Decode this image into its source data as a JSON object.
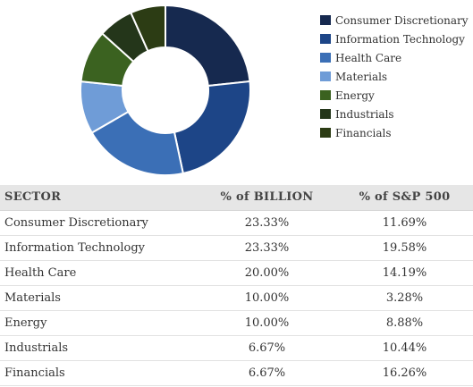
{
  "chart_data": {
    "type": "pie",
    "style": "donut",
    "categories": [
      "Consumer Discretionary",
      "Information Technology",
      "Health Care",
      "Materials",
      "Energy",
      "Industrials",
      "Financials"
    ],
    "values": [
      23.33,
      23.33,
      20.0,
      10.0,
      10.0,
      6.67,
      6.67
    ],
    "colors": [
      "#16294f",
      "#1d4587",
      "#3b6fb6",
      "#6f9cd7",
      "#3b6220",
      "#24361a",
      "#2c3c14"
    ],
    "legend_position": "right"
  },
  "legend": {
    "items": [
      {
        "label": "Consumer Discretionary",
        "color": "#16294f"
      },
      {
        "label": "Information Technology",
        "color": "#1d4587"
      },
      {
        "label": "Health Care",
        "color": "#3b6fb6"
      },
      {
        "label": "Materials",
        "color": "#6f9cd7"
      },
      {
        "label": "Energy",
        "color": "#3b6220"
      },
      {
        "label": "Industrials",
        "color": "#24361a"
      },
      {
        "label": "Financials",
        "color": "#2c3c14"
      }
    ]
  },
  "table": {
    "headers": [
      "SECTOR",
      "% of BILLION",
      "% of S&P 500"
    ],
    "rows": [
      [
        "Consumer Discretionary",
        "23.33%",
        "11.69%"
      ],
      [
        "Information Technology",
        "23.33%",
        "19.58%"
      ],
      [
        "Health Care",
        "20.00%",
        "14.19%"
      ],
      [
        "Materials",
        "10.00%",
        "3.28%"
      ],
      [
        "Energy",
        "10.00%",
        "8.88%"
      ],
      [
        "Industrials",
        "6.67%",
        "10.44%"
      ],
      [
        "Financials",
        "6.67%",
        "16.26%"
      ]
    ]
  }
}
